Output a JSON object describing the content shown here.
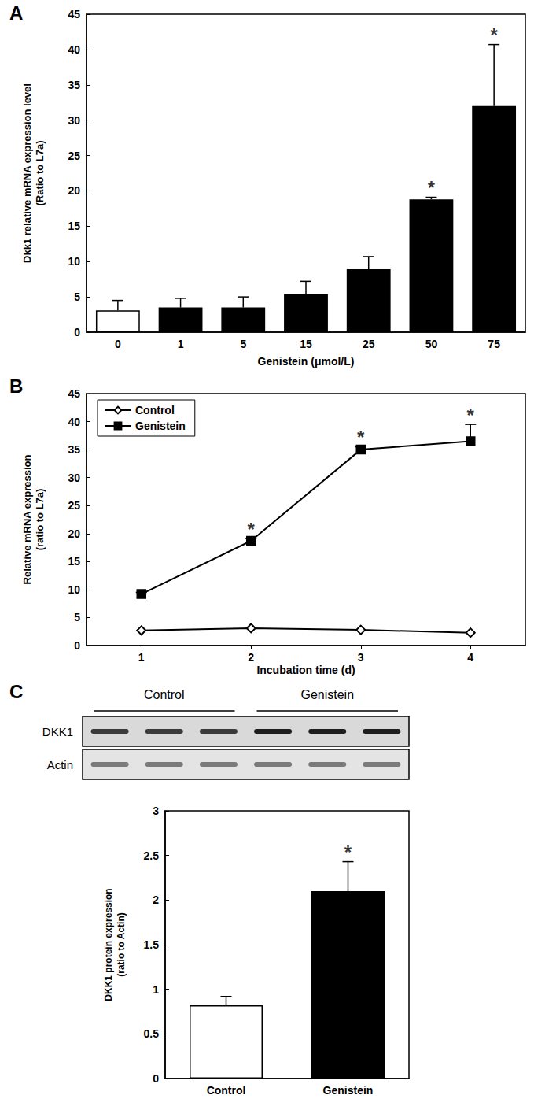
{
  "chart_data": [
    {
      "type": "bar",
      "title": "A",
      "categories": [
        "0",
        "1",
        "5",
        "15",
        "25",
        "50",
        "75"
      ],
      "values": [
        3.1,
        3.5,
        3.5,
        5.4,
        8.9,
        18.8,
        32.0
      ],
      "errors": [
        1.4,
        1.3,
        1.5,
        1.8,
        1.8,
        0.3,
        8.7
      ],
      "colors": [
        "#ffffff",
        "#000000",
        "#000000",
        "#000000",
        "#000000",
        "#000000",
        "#000000"
      ],
      "xlabel": "Genistein (μmol/L)",
      "ylabel": [
        "Dkk1 relative mRNA expression level",
        "(Ratio to L7a)"
      ],
      "ylim": [
        0,
        45
      ],
      "yticks": [
        0,
        5,
        10,
        15,
        20,
        25,
        30,
        35,
        40,
        45
      ],
      "grid": false,
      "annotations": [
        {
          "x": "50",
          "text": "*"
        },
        {
          "x": "75",
          "text": "*"
        }
      ]
    },
    {
      "type": "line",
      "title": "B",
      "categories": [
        "1",
        "2",
        "3",
        "4"
      ],
      "series": [
        {
          "name": "Control",
          "color": "#000000",
          "marker": "open diamond",
          "values": [
            2.7,
            3.1,
            2.8,
            2.3
          ]
        },
        {
          "name": "Genistein",
          "color": "#000000",
          "marker": "square",
          "values": [
            9.2,
            18.7,
            35.0,
            36.5
          ],
          "errors": [
            0.3,
            0.4,
            0.5,
            3.0
          ]
        }
      ],
      "xlabel": "Incubation time (d)",
      "ylabel": [
        "Relative mRNA expression",
        "(ratio to L7a)"
      ],
      "ylim": [
        0,
        45
      ],
      "yticks": [
        0,
        5,
        10,
        15,
        20,
        25,
        30,
        35,
        40,
        45
      ],
      "grid": false,
      "legend": "top-left",
      "annotations": [
        {
          "x": "2",
          "text": "*",
          "series": "Genistein"
        },
        {
          "x": "3",
          "text": "*",
          "series": "Genistein"
        },
        {
          "x": "4",
          "text": "*",
          "series": "Genistein"
        }
      ]
    },
    {
      "type": "bar",
      "categories": [
        "Control",
        "Genistein"
      ],
      "values": [
        0.82,
        2.1
      ],
      "errors": [
        0.1,
        0.33
      ],
      "colors": [
        "#ffffff",
        "#000000"
      ],
      "ylabel": [
        "DKK1 protein expression",
        "(ratio to Actin)"
      ],
      "ylim": [
        0,
        3
      ],
      "yticks": [
        0,
        0.5,
        1,
        1.5,
        2,
        2.5,
        3
      ],
      "grid": false,
      "annotations": [
        {
          "x": "Genistein",
          "text": "*"
        }
      ]
    }
  ],
  "blot": {
    "title": "C",
    "groups": [
      "Control",
      "Genistein"
    ],
    "rows": [
      "DKK1",
      "Actin"
    ]
  }
}
